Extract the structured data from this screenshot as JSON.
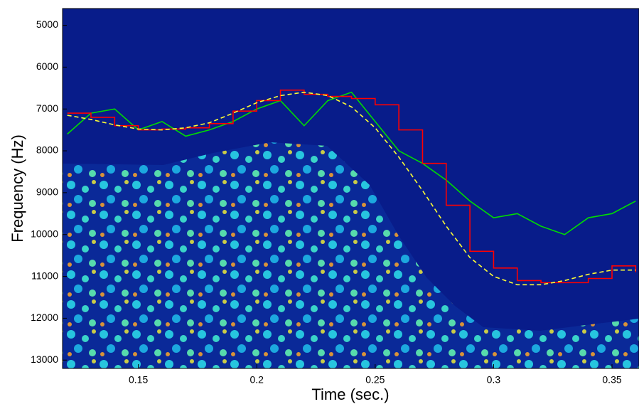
{
  "chart_data": {
    "type": "line",
    "xlabel": "Time (sec.)",
    "ylabel": "Frequency (Hz)",
    "x": [
      0.12,
      0.13,
      0.14,
      0.15,
      0.16,
      0.17,
      0.18,
      0.19,
      0.2,
      0.21,
      0.22,
      0.23,
      0.24,
      0.25,
      0.26,
      0.27,
      0.28,
      0.29,
      0.3,
      0.31,
      0.32,
      0.33,
      0.34,
      0.35,
      0.36
    ],
    "series": [
      {
        "color": "#00dd00",
        "linestyle": "solid",
        "drawstyle": "default",
        "values": [
          7600,
          7100,
          7000,
          7500,
          7300,
          7650,
          7500,
          7300,
          7000,
          6800,
          7400,
          6800,
          6600,
          7300,
          8000,
          8300,
          8700,
          9200,
          9600,
          9500,
          9800,
          10000,
          9600,
          9500,
          9200
        ]
      },
      {
        "color": "#ff0000",
        "linestyle": "solid",
        "drawstyle": "steps",
        "values": [
          7100,
          7200,
          7400,
          7500,
          7480,
          7450,
          7350,
          7050,
          6800,
          6550,
          6650,
          6700,
          6750,
          6900,
          7500,
          8300,
          9300,
          10400,
          10800,
          11100,
          11150,
          11150,
          11050,
          10750,
          10900
        ]
      },
      {
        "color": "#ffff33",
        "linestyle": "dashed",
        "drawstyle": "default",
        "values": [
          7150,
          7250,
          7380,
          7480,
          7500,
          7450,
          7330,
          7100,
          6850,
          6680,
          6600,
          6680,
          6950,
          7450,
          8150,
          8950,
          9800,
          10550,
          11000,
          11200,
          11200,
          11100,
          10950,
          10850,
          10850
        ]
      }
    ],
    "xlim": [
      0.118,
      0.3614
    ],
    "ylim": [
      4600,
      13200
    ],
    "y_inverted": true,
    "xticks": [
      0.15,
      0.2,
      0.25,
      0.3,
      0.35
    ],
    "yticks": [
      5000,
      6000,
      7000,
      8000,
      9000,
      10000,
      11000,
      12000,
      13000
    ]
  }
}
